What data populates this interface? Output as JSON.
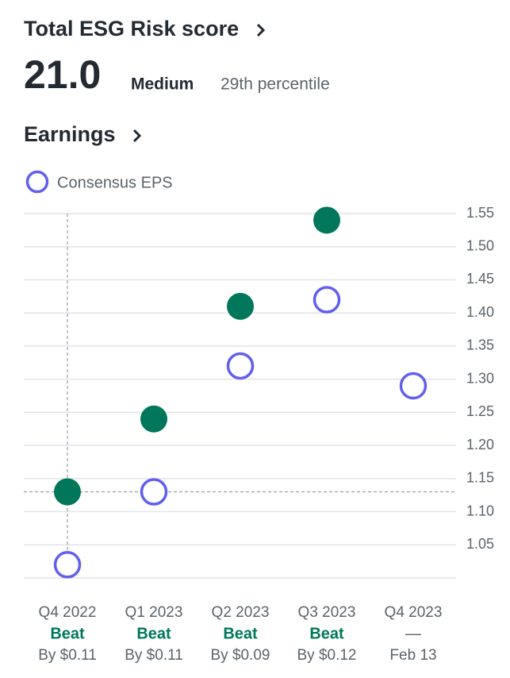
{
  "header": {
    "title": "Total ESG Risk score",
    "score": "21.0",
    "level": "Medium",
    "percentile": "29th percentile"
  },
  "chart_data": {
    "type": "scatter",
    "title": "Earnings",
    "categories": [
      "Q4 2022",
      "Q1 2023",
      "Q2 2023",
      "Q3 2023",
      "Q4 2023"
    ],
    "results": [
      "Beat",
      "Beat",
      "Beat",
      "Beat",
      "—"
    ],
    "details": [
      "By $0.11",
      "By $0.11",
      "By $0.09",
      "By $0.12",
      "Feb 13"
    ],
    "series": [
      {
        "color": "#00775b",
        "values": [
          1.13,
          1.24,
          1.41,
          1.54,
          null
        ]
      },
      {
        "name": "Consensus EPS",
        "color": "#6160ee",
        "values": [
          1.02,
          1.13,
          1.32,
          1.42,
          1.29
        ]
      }
    ],
    "ylim": [
      1.0,
      1.55
    ],
    "yticks": [
      1.05,
      {
        "value": 1.1,
        "label": "1.10"
      },
      1.15,
      {
        "value": 1.2,
        "label": "1.20"
      },
      1.25,
      {
        "value": 1.3,
        "label": "1.30"
      },
      1.35,
      {
        "value": 1.4,
        "label": "1.40"
      },
      1.45,
      {
        "value": 1.5,
        "label": "1.50"
      },
      1.55
    ],
    "grid": true
  }
}
